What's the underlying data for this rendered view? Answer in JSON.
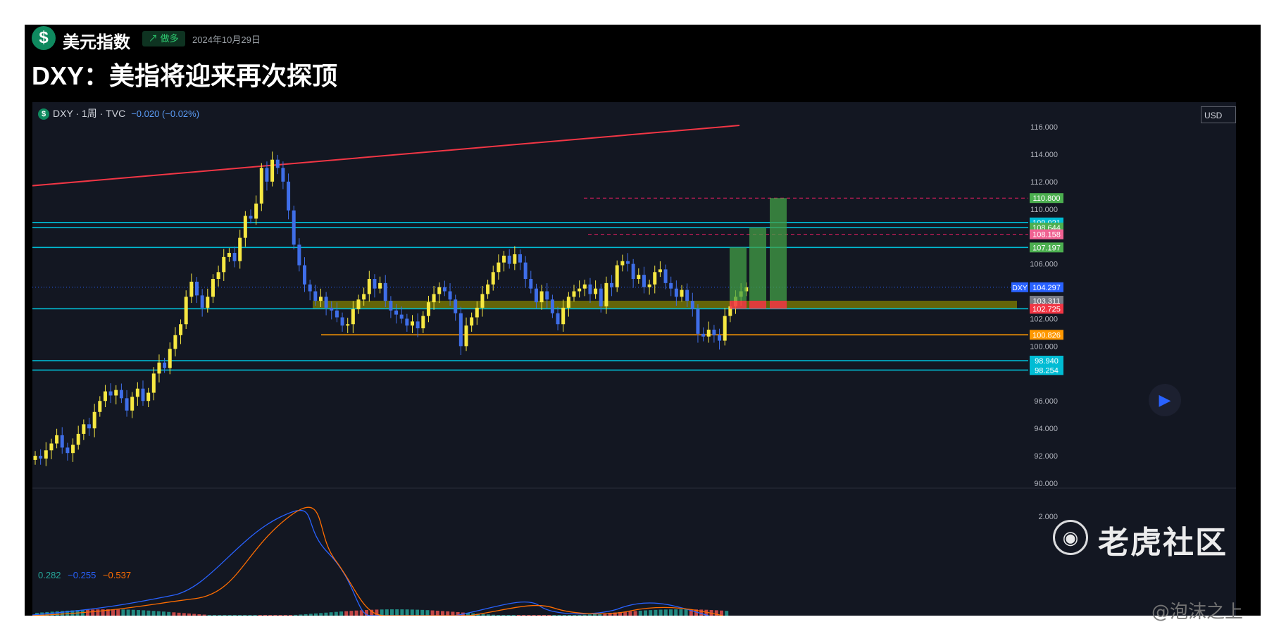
{
  "header": {
    "logo_glyph": "$",
    "symbol_name": "美元指数",
    "badge_icon": "↗",
    "badge_label": "做多",
    "date": "2024年10月29日",
    "title": "DXY：美指将迎来再次探顶"
  },
  "chart": {
    "symbol_info": "DXY · 1周 · TVC",
    "change": "−0.020 (−0.02%)",
    "currency": "USD",
    "play_icon": "▶"
  },
  "chart_data": {
    "type": "candlestick",
    "ylim": [
      90,
      116
    ],
    "y_ticks": [
      "116.000",
      "114.000",
      "112.000",
      "110.000",
      "106.000",
      "102.000",
      "100.000",
      "96.000",
      "94.000",
      "92.000",
      "90.000"
    ],
    "candles_close": [
      92.0,
      91.8,
      92.4,
      92.9,
      93.5,
      92.6,
      92.2,
      92.8,
      93.6,
      94.3,
      94.0,
      95.2,
      96.0,
      96.7,
      96.4,
      96.8,
      96.2,
      95.3,
      96.3,
      96.9,
      96.0,
      96.6,
      98.0,
      98.8,
      98.4,
      99.8,
      100.8,
      101.6,
      103.6,
      104.7,
      103.7,
      102.8,
      103.6,
      104.9,
      105.4,
      106.5,
      106.8,
      106.2,
      107.9,
      109.5,
      109.3,
      110.4,
      113.0,
      112.0,
      113.6,
      113.0,
      112.0,
      109.9,
      107.4,
      105.9,
      104.5,
      104.0,
      103.3,
      103.6,
      102.8,
      102.6,
      102.1,
      101.5,
      101.6,
      102.7,
      103.4,
      103.8,
      104.9,
      104.2,
      104.6,
      103.3,
      102.6,
      102.3,
      102.0,
      101.5,
      101.8,
      101.3,
      102.2,
      103.2,
      103.8,
      104.3,
      104.0,
      103.4,
      102.4,
      100.0,
      101.5,
      102.1,
      102.8,
      103.8,
      104.5,
      105.4,
      106.1,
      106.6,
      106.0,
      106.7,
      106.1,
      104.9,
      104.2,
      103.2,
      104.0,
      103.4,
      102.4,
      101.6,
      102.8,
      103.6,
      104.0,
      104.2,
      104.5,
      103.8,
      104.2,
      102.9,
      104.6,
      104.3,
      105.9,
      106.2,
      106.0,
      104.9,
      105.2,
      104.3,
      104.5,
      105.4,
      105.6,
      104.6,
      104.2,
      103.6,
      104.1,
      103.3,
      102.7,
      100.9,
      100.7,
      101.2,
      100.8,
      100.4,
      102.2,
      102.9,
      103.6,
      104.0,
      104.3
    ],
    "horizontal_levels": [
      {
        "price": 109.021,
        "label": "109.021",
        "color": "#00bcd4"
      },
      {
        "price": 108.644,
        "label": "108.644",
        "color": "#00bcd4"
      },
      {
        "price": 107.197,
        "label": "107.197",
        "color": "#00bcd4"
      },
      {
        "price": 102.725,
        "label": "102.725",
        "color": "#00bcd4"
      },
      {
        "price": 100.826,
        "label": "100.826",
        "color": "#ff9800"
      },
      {
        "price": 98.94,
        "label": "98.940",
        "color": "#00bcd4"
      },
      {
        "price": 98.254,
        "label": "98.254",
        "color": "#00bcd4"
      }
    ],
    "dashed_levels": [
      {
        "price": 110.8,
        "color": "#e91e63"
      },
      {
        "price": 108.158,
        "color": "#e91e63"
      }
    ],
    "trendline": {
      "from": {
        "x": 0,
        "y": 111.7
      },
      "to": {
        "x": 1,
        "y": 116.1
      },
      "color": "#f23645"
    },
    "support_zone": {
      "low": 102.725,
      "high": 103.311,
      "color": "#808000"
    },
    "projection_bars": [
      {
        "top": 107.197,
        "base": 103.311
      },
      {
        "top": 108.644,
        "base": 103.311
      },
      {
        "top": 110.8,
        "base": 103.311
      }
    ],
    "price_labels": [
      {
        "text": "110.800",
        "price": 110.8,
        "bg": "#4caf50"
      },
      {
        "text": "109.021",
        "price": 109.021,
        "bg": "#00bcd4"
      },
      {
        "text": "108.644",
        "price": 108.644,
        "bg": "#4caf50"
      },
      {
        "text": "108.158",
        "price": 108.158,
        "bg": "#f06292"
      },
      {
        "text": "107.197",
        "price": 107.197,
        "bg": "#4caf50"
      },
      {
        "text": "104.297",
        "price": 104.297,
        "bg": "#2962ff",
        "tag": "DXY"
      },
      {
        "text": "103.311",
        "price": 103.311,
        "bg": "#787b86"
      },
      {
        "text": "102.725",
        "price": 102.725,
        "bg": "#f23645"
      },
      {
        "text": "100.826",
        "price": 100.826,
        "bg": "#ff9800"
      },
      {
        "text": "98.940",
        "price": 98.94,
        "bg": "#00bcd4"
      },
      {
        "text": "98.254",
        "price": 98.254,
        "bg": "#00bcd4"
      }
    ],
    "current_price": 104.297,
    "macd": {
      "values": [
        "0.282",
        "−0.255",
        "−0.537"
      ],
      "colors": [
        "#26a69a",
        "#2962ff",
        "#ff6d00"
      ],
      "tick": "2.000"
    }
  },
  "watermark": {
    "logo_glyph": "◉",
    "brand": "老虎社区",
    "author": "@泡沫之上"
  }
}
